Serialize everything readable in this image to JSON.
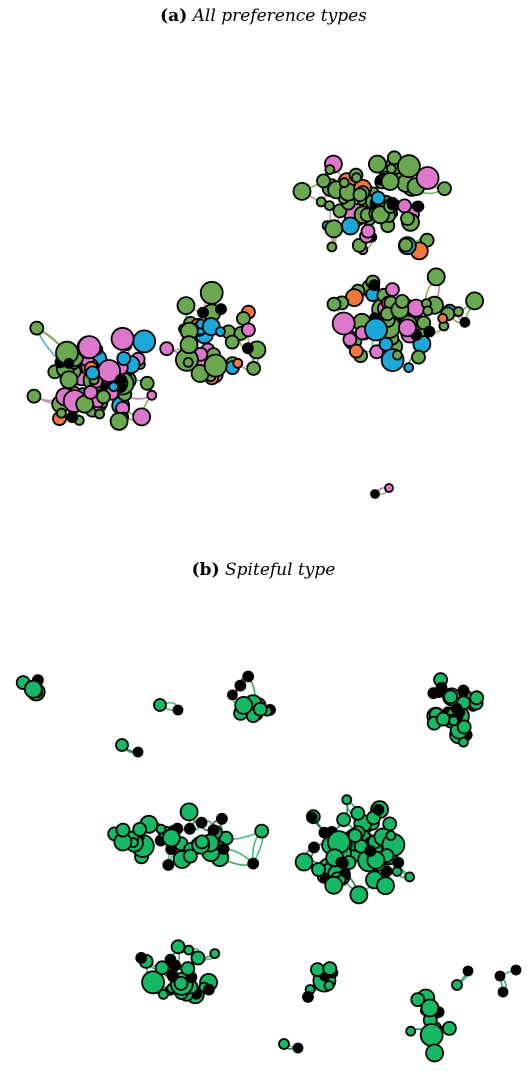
{
  "panels": [
    {
      "label": "(a)",
      "title": "All preference types",
      "colors": {
        "green": "#6aa84f",
        "pink": "#dd77cc",
        "orange": "#f07838",
        "blue": "#1aa8d8",
        "black": "#000000"
      }
    },
    {
      "label": "(b)",
      "title": "Spiteful type",
      "colors": {
        "green": "#15b865",
        "black": "#000000"
      }
    }
  ]
}
